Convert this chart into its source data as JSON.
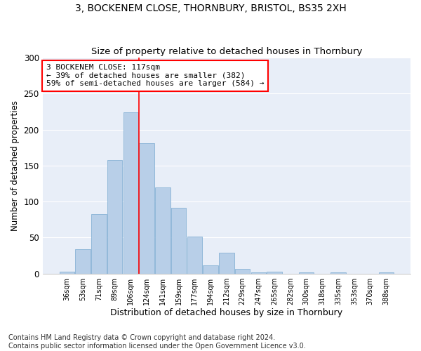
{
  "title": "3, BOCKENEM CLOSE, THORNBURY, BRISTOL, BS35 2XH",
  "subtitle": "Size of property relative to detached houses in Thornbury",
  "xlabel": "Distribution of detached houses by size in Thornbury",
  "ylabel": "Number of detached properties",
  "bar_labels": [
    "36sqm",
    "53sqm",
    "71sqm",
    "89sqm",
    "106sqm",
    "124sqm",
    "141sqm",
    "159sqm",
    "177sqm",
    "194sqm",
    "212sqm",
    "229sqm",
    "247sqm",
    "265sqm",
    "282sqm",
    "300sqm",
    "318sqm",
    "335sqm",
    "353sqm",
    "370sqm",
    "388sqm"
  ],
  "bar_values": [
    3,
    34,
    83,
    158,
    224,
    181,
    120,
    91,
    51,
    11,
    29,
    7,
    2,
    3,
    0,
    2,
    0,
    2,
    0,
    0,
    2
  ],
  "bar_color": "#b8cfe8",
  "bar_edge_color": "#7aaad0",
  "vline_x": 4.5,
  "vline_color": "red",
  "annotation_text": "3 BOCKENEM CLOSE: 117sqm\n← 39% of detached houses are smaller (382)\n59% of semi-detached houses are larger (584) →",
  "box_color": "white",
  "box_edge_color": "red",
  "ylim": [
    0,
    300
  ],
  "yticks": [
    0,
    50,
    100,
    150,
    200,
    250,
    300
  ],
  "footnote": "Contains HM Land Registry data © Crown copyright and database right 2024.\nContains public sector information licensed under the Open Government Licence v3.0.",
  "title_fontsize": 10,
  "subtitle_fontsize": 9.5,
  "xlabel_fontsize": 9,
  "ylabel_fontsize": 8.5,
  "annotation_fontsize": 8,
  "footnote_fontsize": 7,
  "bg_color": "#e8eef8",
  "grid_color": "white"
}
